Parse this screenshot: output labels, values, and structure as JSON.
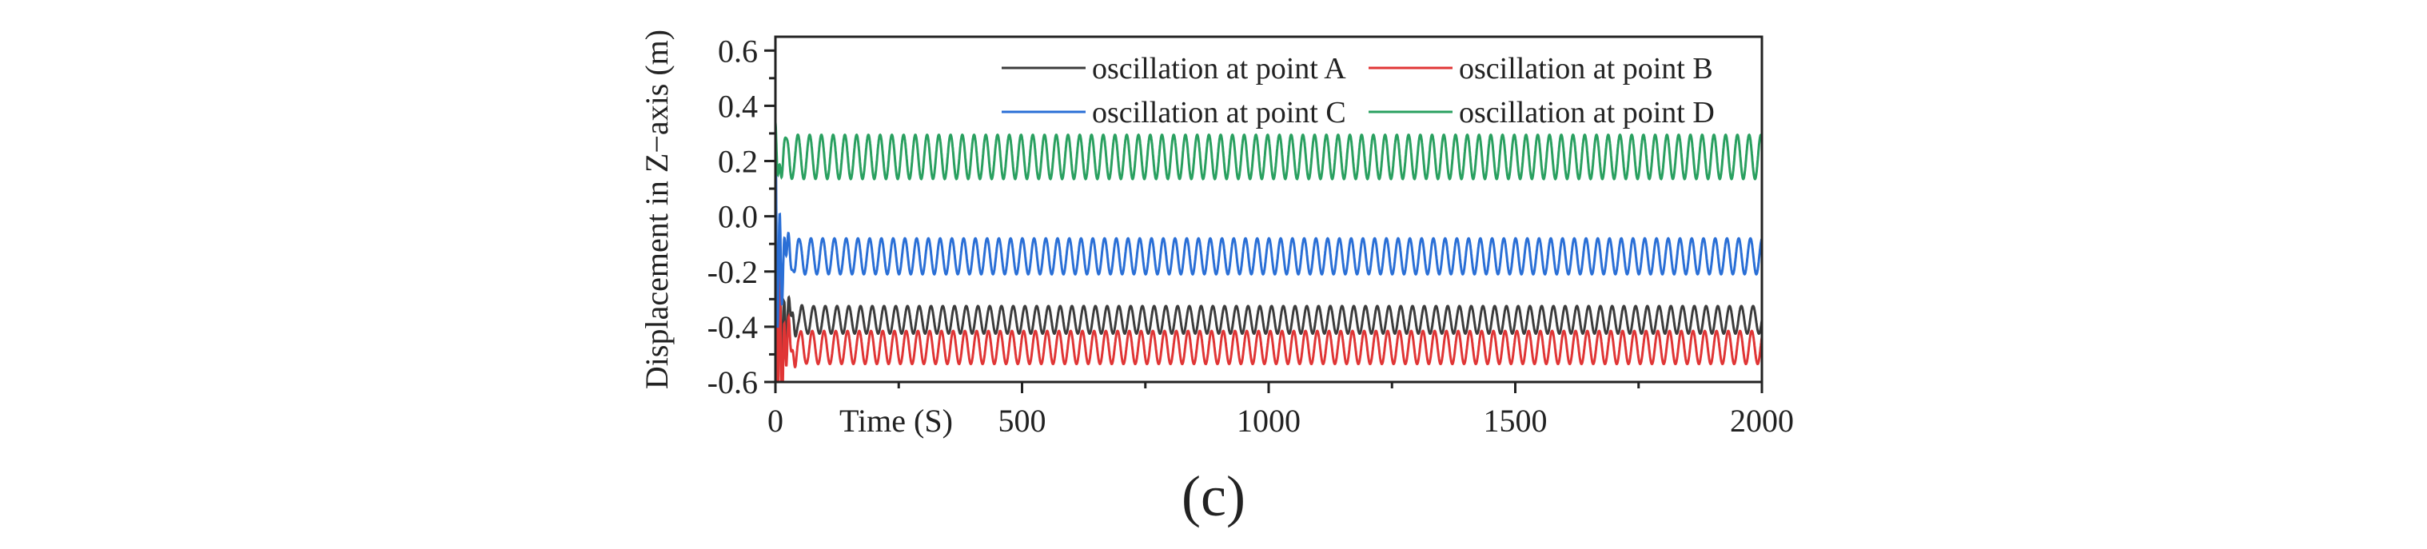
{
  "figure": {
    "panel_label": "(c)"
  },
  "chart_data": {
    "type": "line",
    "title": "",
    "xlabel": "Time (S)",
    "ylabel": "Displacement in Z−axis (m)",
    "xlim": [
      0,
      2000
    ],
    "ylim": [
      -0.6,
      0.65
    ],
    "x_ticks": [
      0,
      500,
      1000,
      1500,
      2000
    ],
    "x_tick_labels": [
      "0",
      "500",
      "1000",
      "1500",
      "2000"
    ],
    "y_ticks": [
      -0.6,
      -0.4,
      -0.2,
      0.0,
      0.2,
      0.4,
      0.6
    ],
    "y_tick_labels": [
      "-0.6",
      "-0.4",
      "-0.2",
      "0.0",
      "0.2",
      "0.4",
      "0.6"
    ],
    "grid": false,
    "legend_position": "top-right",
    "oscillation_cycles": 84,
    "series": [
      {
        "name": "oscillation at point A",
        "color": "#3c3c3c",
        "mean": -0.375,
        "amplitude": 0.05
      },
      {
        "name": "oscillation at point B",
        "color": "#e03535",
        "mean": -0.475,
        "amplitude": 0.06
      },
      {
        "name": "oscillation at point C",
        "color": "#2a6fd6",
        "mean": -0.145,
        "amplitude": 0.065
      },
      {
        "name": "oscillation at point D",
        "color": "#2aa060",
        "mean": 0.215,
        "amplitude": 0.08
      }
    ]
  }
}
